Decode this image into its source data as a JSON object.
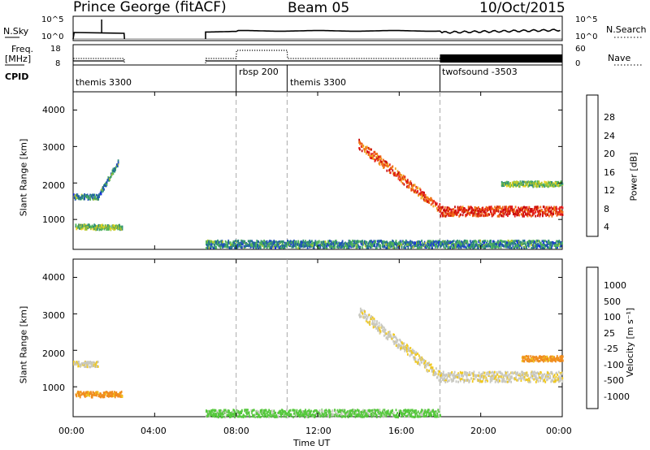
{
  "header": {
    "station": "Prince George (fitACF)",
    "beam": "Beam 05",
    "date": "10/Oct/2015"
  },
  "top_panel": {
    "left_label": "N.Sky",
    "right_label": "N.Search",
    "left_ticks": [
      "10^5",
      "10^0"
    ],
    "right_ticks": [
      "10^5",
      "10^0"
    ]
  },
  "freq_panel": {
    "left_label_1": "Freq.",
    "left_label_2": "[MHz]",
    "right_label": "Nave",
    "left_ticks": [
      "18",
      "8"
    ],
    "right_ticks": [
      "60",
      "0"
    ]
  },
  "cpid": {
    "label": "CPID",
    "segments": [
      {
        "start": 0.0,
        "end": 8.0,
        "name": "themis 3300"
      },
      {
        "start": 8.0,
        "end": 10.5,
        "name": "rbsp 200"
      },
      {
        "start": 10.5,
        "end": 18.0,
        "name": "themis 3300"
      },
      {
        "start": 18.0,
        "end": 24.0,
        "name": "twofsound -3503"
      }
    ]
  },
  "x_axis": {
    "label": "Time UT",
    "ticks": [
      "00:00",
      "04:00",
      "08:00",
      "12:00",
      "16:00",
      "20:00",
      "00:00"
    ],
    "tick_values": [
      0,
      4,
      8,
      12,
      16,
      20,
      24
    ]
  },
  "power_panel": {
    "ylabel": "Slant Range [km]",
    "yticks": [
      "4000",
      "3000",
      "2000",
      "1000"
    ],
    "cbar_label": "Power [dB]",
    "cbar_ticks": [
      "28",
      "24",
      "20",
      "16",
      "12",
      "8",
      "4"
    ]
  },
  "velocity_panel": {
    "ylabel": "Slant Range [km]",
    "yticks": [
      "4000",
      "3000",
      "2000",
      "1000"
    ],
    "cbar_label": "Velocity [m s⁻¹]",
    "cbar_ticks": [
      "1000",
      "500",
      "100",
      "25",
      "-25",
      "-100",
      "-500",
      "-1000"
    ]
  },
  "colors": {
    "power_scale": [
      "#1428e6",
      "#1e50b4",
      "#2d8c78",
      "#50b45a",
      "#b4c828",
      "#f0d21e",
      "#f0a01e",
      "#f06414",
      "#e61e1e",
      "#c80a0a"
    ],
    "velocity_scale": [
      "#1e3cc8",
      "#2d8c64",
      "#55c83c",
      "#c8c8c0",
      "#f0c81e",
      "#f08c1e",
      "#f05014",
      "#e61414"
    ],
    "cpid_divider": "#aaaaaa"
  },
  "chart_data": {
    "type": "heatmap",
    "x_range_hours": [
      0,
      24
    ],
    "y_range_km": [
      180,
      4500
    ],
    "power_features_db": [
      {
        "name": "early band",
        "t_start": 0.0,
        "t_end": 1.2,
        "range_km": 1650,
        "power_db": 8
      },
      {
        "name": "early rising arc",
        "t_start": 1.2,
        "t_end": 2.2,
        "range_start_km": 1650,
        "range_end_km": 2600,
        "power_db": 8
      },
      {
        "name": "early low patch",
        "t_start": 0.1,
        "t_end": 2.4,
        "range_km": 820,
        "power_db": 12
      },
      {
        "name": "ground scatter",
        "t_start": 6.5,
        "t_end": 24.0,
        "range_km": 350,
        "power_db": 8
      },
      {
        "name": "main descending arc",
        "t_start": 14.0,
        "t_end": 18.0,
        "range_start_km": 3100,
        "range_end_km": 1300,
        "power_db": 24
      },
      {
        "name": "evening band",
        "t_start": 18.0,
        "t_end": 24.0,
        "range_km": 1250,
        "power_db": 26
      },
      {
        "name": "upper scattered",
        "t_start": 21.0,
        "t_end": 24.0,
        "range_km": 2000,
        "power_db": 12
      }
    ],
    "velocity_features_ms": [
      {
        "name": "early low patch",
        "t_start": 0.1,
        "t_end": 2.4,
        "range_km": 820,
        "velocity_ms": -100
      },
      {
        "name": "early band",
        "t_start": 0.0,
        "t_end": 1.2,
        "range_km": 1650,
        "velocity_ms": 0
      },
      {
        "name": "ground scatter",
        "t_start": 6.5,
        "t_end": 18.0,
        "range_km": 300,
        "velocity_ms": 100
      },
      {
        "name": "main arc",
        "t_start": 14.0,
        "t_end": 24.0,
        "range_km": 1300,
        "velocity_ms": 0
      },
      {
        "name": "evening orange",
        "t_start": 22.0,
        "t_end": 24.0,
        "range_km": 1800,
        "velocity_ms": -100
      }
    ]
  }
}
